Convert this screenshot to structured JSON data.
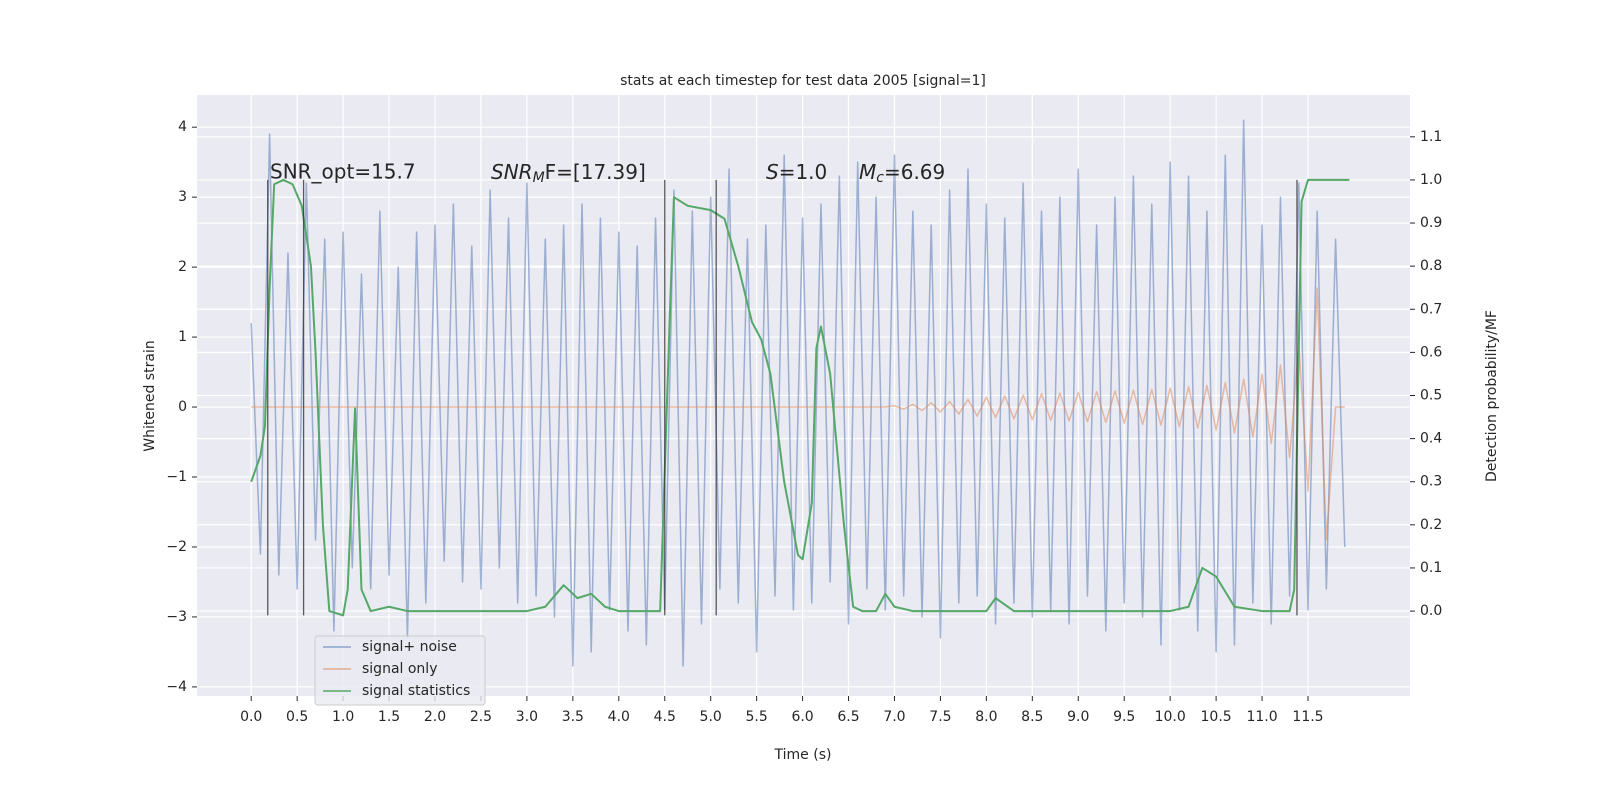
{
  "chart_data": {
    "type": "line",
    "title": "stats at each timestep for test data 2005 [signal=1]",
    "xlabel": "Time (s)",
    "ylabel": "Whitened strain",
    "y2label": "Detection probability/MF",
    "annotations": [
      "SNR_opt=15.7",
      [
        "SNR",
        "M",
        "F=[17.39]"
      ],
      [
        "S",
        "=1.0"
      ],
      [
        "M",
        "c",
        "=6.69"
      ]
    ],
    "grid": true,
    "legend": "lower left",
    "xlim": [
      -0.59,
      12.61
    ],
    "ylim": [
      -4.13,
      4.46
    ],
    "y2lim": [
      -0.197,
      1.197
    ],
    "xticks": [
      {
        "value": 0,
        "label": "0.0"
      },
      0.5,
      {
        "value": 1,
        "label": "1.0"
      },
      1.5,
      {
        "value": 2,
        "label": "2.0"
      },
      2.5,
      {
        "value": 3,
        "label": "3.0"
      },
      3.5,
      {
        "value": 4,
        "label": "4.0"
      },
      4.5,
      {
        "value": 5,
        "label": "5.0"
      },
      5.5,
      {
        "value": 6,
        "label": "6.0"
      },
      6.5,
      {
        "value": 7,
        "label": "7.0"
      },
      7.5,
      {
        "value": 8,
        "label": "8.0"
      },
      8.5,
      {
        "value": 9,
        "label": "9.0"
      },
      9.5,
      {
        "value": 10,
        "label": "10.0"
      },
      10.5,
      {
        "value": 11,
        "label": "11.0"
      },
      11.5
    ],
    "yticks": [
      {
        "value": -4,
        "label": "−4"
      },
      {
        "value": -3,
        "label": "−3"
      },
      {
        "value": -2,
        "label": "−2"
      },
      {
        "value": -1,
        "label": "−1"
      },
      0,
      1,
      2,
      3,
      4
    ],
    "y2ticks": [
      {
        "value": 0,
        "label": "0.0"
      },
      0.1,
      0.2,
      0.3,
      0.4,
      0.5,
      0.6,
      0.7,
      0.8,
      0.9,
      {
        "value": 1,
        "label": "1.0"
      },
      1.1
    ],
    "vlines": [
      0.18,
      0.57,
      4.5,
      5.06,
      11.38
    ],
    "x": [
      0.0,
      0.1,
      0.2,
      0.3,
      0.4,
      0.5,
      0.6,
      0.7,
      0.8,
      0.9,
      1.0,
      1.1,
      1.2,
      1.3,
      1.4,
      1.5,
      1.6,
      1.7,
      1.8,
      1.9,
      2.0,
      2.1,
      2.2,
      2.3,
      2.4,
      2.5,
      2.6,
      2.7,
      2.8,
      2.9,
      3.0,
      3.1,
      3.2,
      3.3,
      3.4,
      3.5,
      3.6,
      3.7,
      3.8,
      3.9,
      4.0,
      4.1,
      4.2,
      4.3,
      4.4,
      4.5,
      4.6,
      4.7,
      4.8,
      4.9,
      5.0,
      5.1,
      5.2,
      5.3,
      5.4,
      5.5,
      5.6,
      5.7,
      5.8,
      5.9,
      6.0,
      6.1,
      6.2,
      6.3,
      6.4,
      6.5,
      6.6,
      6.7,
      6.8,
      6.9,
      7.0,
      7.1,
      7.2,
      7.3,
      7.4,
      7.5,
      7.6,
      7.7,
      7.8,
      7.9,
      8.0,
      8.1,
      8.2,
      8.3,
      8.4,
      8.5,
      8.6,
      8.7,
      8.8,
      8.9,
      9.0,
      9.1,
      9.2,
      9.3,
      9.4,
      9.5,
      9.6,
      9.7,
      9.8,
      9.9,
      10.0,
      10.1,
      10.2,
      10.3,
      10.4,
      10.5,
      10.6,
      10.7,
      10.8,
      10.9,
      11.0,
      11.1,
      11.2,
      11.3,
      11.4,
      11.5,
      11.6,
      11.7,
      11.8,
      11.9
    ],
    "series": [
      {
        "name": "signal+ noise",
        "color": "#4c72b0",
        "values": [
          1.2,
          -2.1,
          3.9,
          -2.4,
          2.2,
          -2.6,
          3.2,
          -1.9,
          2.4,
          -3.2,
          2.5,
          -2.3,
          1.9,
          -2.6,
          2.8,
          -2.4,
          2.0,
          -3.3,
          2.5,
          -2.8,
          2.6,
          -2.2,
          2.9,
          -2.5,
          2.3,
          -2.6,
          3.1,
          -2.3,
          2.7,
          -2.8,
          3.2,
          -2.7,
          2.4,
          -3.0,
          2.6,
          -3.7,
          2.9,
          -3.5,
          2.7,
          -2.9,
          2.5,
          -3.2,
          2.3,
          -3.4,
          2.7,
          -2.9,
          3.1,
          -3.7,
          2.8,
          -3.1,
          3.0,
          -2.6,
          3.4,
          -2.8,
          2.4,
          -3.5,
          2.6,
          -2.7,
          3.6,
          -2.9,
          2.7,
          -2.8,
          2.9,
          -2.5,
          3.3,
          -3.1,
          3.5,
          -2.6,
          3.0,
          -2.9,
          3.6,
          -2.7,
          2.8,
          -3.0,
          2.6,
          -3.3,
          3.1,
          -2.8,
          3.4,
          -2.7,
          2.9,
          -3.1,
          2.7,
          -2.8,
          3.2,
          -3.0,
          2.8,
          -2.9,
          3.0,
          -3.1,
          3.4,
          -2.7,
          2.6,
          -3.2,
          3.0,
          -2.8,
          3.3,
          -3.0,
          2.9,
          -3.4,
          3.5,
          -2.9,
          3.3,
          -3.2,
          2.8,
          -3.5,
          3.6,
          -3.4,
          4.1,
          -2.8,
          2.6,
          -3.1,
          3.0,
          -2.7,
          3.2,
          -2.9,
          2.8,
          -2.6,
          2.4,
          -2.0
        ]
      },
      {
        "name": "signal only",
        "color": "#dd8452",
        "values": [
          0,
          0,
          0,
          0,
          0,
          0,
          0,
          0,
          0,
          0,
          0,
          0,
          0,
          0,
          0,
          0,
          0,
          0,
          0,
          0,
          0,
          0,
          0,
          0,
          0,
          0,
          0,
          0,
          0,
          0,
          0,
          0,
          0,
          0,
          0,
          0,
          0,
          0,
          0,
          0,
          0,
          0,
          0,
          0,
          0,
          0,
          0,
          0,
          0,
          0,
          0,
          0,
          0,
          0,
          0,
          0,
          0,
          0,
          0,
          0,
          0,
          0,
          0,
          0,
          0,
          0,
          0,
          0,
          0,
          0,
          0.02,
          -0.03,
          0.04,
          -0.05,
          0.06,
          -0.07,
          0.08,
          -0.1,
          0.11,
          -0.13,
          0.14,
          -0.15,
          0.16,
          -0.17,
          0.17,
          -0.18,
          0.19,
          -0.19,
          0.2,
          -0.2,
          0.21,
          -0.21,
          0.22,
          -0.22,
          0.23,
          -0.23,
          0.24,
          -0.25,
          0.25,
          -0.26,
          0.27,
          -0.28,
          0.29,
          -0.3,
          0.31,
          -0.33,
          0.35,
          -0.37,
          0.4,
          -0.43,
          0.47,
          -0.52,
          0.6,
          -0.72,
          0.9,
          -1.2,
          1.7,
          -1.9,
          0,
          0
        ]
      },
      {
        "name": "signal statistics",
        "color": "#55a868",
        "axis": "y2",
        "x": [
          0.0,
          0.1,
          0.15,
          0.2,
          0.25,
          0.35,
          0.45,
          0.55,
          0.65,
          0.7,
          0.78,
          0.85,
          1.0,
          1.05,
          1.13,
          1.2,
          1.3,
          1.5,
          1.7,
          2.0,
          3.0,
          3.2,
          3.4,
          3.55,
          3.7,
          3.85,
          4.0,
          4.2,
          4.45,
          4.55,
          4.6,
          4.75,
          5.0,
          5.15,
          5.3,
          5.45,
          5.55,
          5.65,
          5.8,
          5.95,
          6.0,
          6.1,
          6.15,
          6.2,
          6.3,
          6.45,
          6.55,
          6.65,
          6.8,
          6.9,
          7.0,
          7.2,
          7.5,
          8.0,
          8.1,
          8.3,
          9.0,
          10.0,
          10.2,
          10.35,
          10.5,
          10.7,
          11.0,
          11.3,
          11.35,
          11.43,
          11.5,
          11.7,
          11.95
        ],
        "values": [
          0.3,
          0.36,
          0.43,
          0.75,
          0.99,
          1.0,
          0.99,
          0.94,
          0.8,
          0.6,
          0.2,
          0.0,
          -0.01,
          0.05,
          0.47,
          0.05,
          0.0,
          0.01,
          0.0,
          0.0,
          0.0,
          0.01,
          0.06,
          0.03,
          0.04,
          0.01,
          0.0,
          0.0,
          0.0,
          0.65,
          0.96,
          0.94,
          0.93,
          0.91,
          0.8,
          0.67,
          0.63,
          0.55,
          0.3,
          0.13,
          0.12,
          0.25,
          0.61,
          0.66,
          0.55,
          0.2,
          0.01,
          0.0,
          0.0,
          0.04,
          0.01,
          0.0,
          0.0,
          0.0,
          0.03,
          0.0,
          0.0,
          0.0,
          0.01,
          0.1,
          0.08,
          0.01,
          0.0,
          0.0,
          0.05,
          0.95,
          1.0,
          1.0,
          1.0
        ]
      }
    ]
  }
}
